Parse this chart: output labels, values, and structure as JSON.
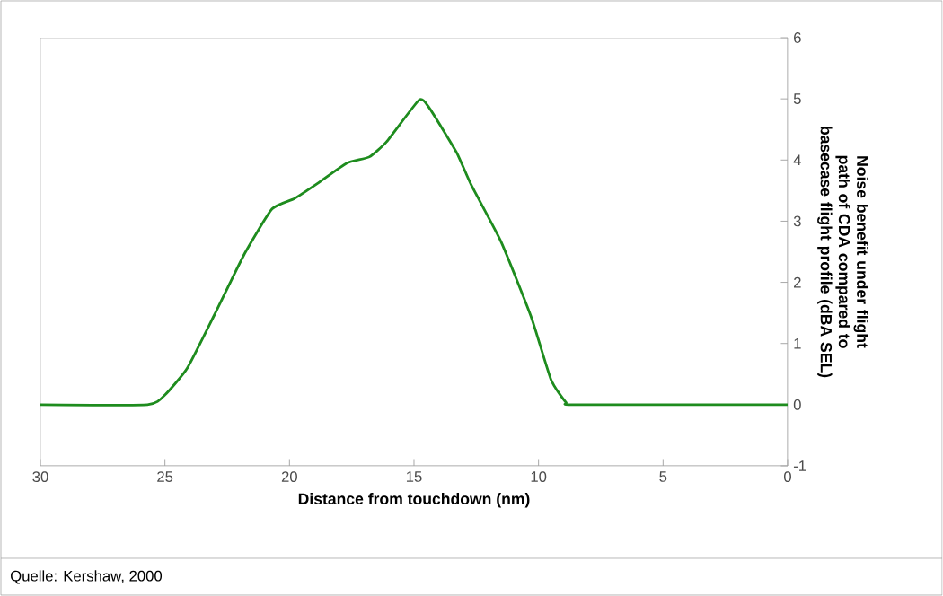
{
  "chart_data": {
    "type": "line",
    "xlabel": "Distance from touchdown (nm)",
    "ylabel": "Noise benefit under flight path of CDA compared to basecase flight profile (dBA SEL)",
    "annotations": [
      "Quelle: Kershaw, 2000"
    ],
    "xlim": [
      30,
      0
    ],
    "xticks": [
      30,
      25,
      20,
      15,
      10,
      5,
      0
    ],
    "ylim": [
      -1,
      6
    ],
    "yticks": [
      -1,
      0,
      1,
      2,
      3,
      4,
      5,
      6
    ],
    "grid": false,
    "marker": "none",
    "line_style": "solid",
    "series": [
      {
        "color": "#1e8c1e",
        "x": [
          30,
          25.7,
          25.0,
          24.1,
          23.0,
          21.8,
          20.7,
          19.8,
          18.9,
          17.7,
          16.8,
          16.1,
          14.8,
          14.4,
          13.3,
          12.7,
          11.5,
          10.3,
          9.5,
          8.9,
          8.5,
          0
        ],
        "values": [
          0,
          0,
          0.16,
          0.6,
          1.48,
          2.47,
          3.2,
          3.37,
          3.61,
          3.95,
          4.05,
          4.3,
          4.98,
          4.86,
          4.13,
          3.59,
          2.66,
          1.44,
          0.41,
          0.04,
          0,
          0
        ]
      }
    ]
  }
}
